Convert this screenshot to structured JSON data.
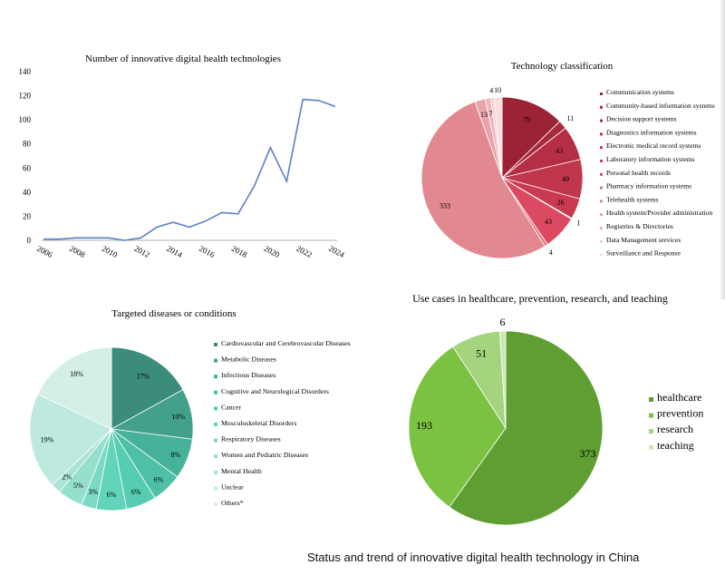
{
  "caption": "Status and trend of innovative digital health technology in China",
  "chart_data": [
    {
      "type": "line",
      "title": "Number of innovative digital health technologies",
      "x": [
        2006,
        2007,
        2008,
        2009,
        2010,
        2011,
        2012,
        2013,
        2014,
        2015,
        2016,
        2017,
        2018,
        2019,
        2020,
        2021,
        2022,
        2023,
        2024
      ],
      "values": [
        1,
        1,
        2,
        2,
        2,
        0,
        2,
        11,
        15,
        11,
        16,
        23,
        22,
        45,
        77,
        49,
        117,
        116,
        111
      ],
      "xticks": [
        "2006",
        "2008",
        "2010",
        "2012",
        "2014",
        "2016",
        "2018",
        "2020",
        "2022",
        "2024"
      ],
      "yticks": [
        0,
        20,
        40,
        60,
        80,
        100,
        120,
        140
      ],
      "ylim": [
        0,
        140
      ],
      "color": "#5b7fc4"
    },
    {
      "type": "pie",
      "title": "Technology classification",
      "labels": [
        "Communication systems",
        "Community-based information systems",
        "Decision support systems",
        "Diagnostics information systems",
        "Electronic medical record systems",
        "Laboratory information systems",
        "Personal health records",
        "Pharmacy information systems",
        "Telehealth systems",
        "Health system/Provider administration",
        "Registries & Directories",
        "Data Management srevices",
        "Surveillance and Response"
      ],
      "values": [
        79,
        11,
        43,
        49,
        26,
        1,
        43,
        4,
        333,
        13,
        7,
        4,
        10
      ],
      "value_labels": [
        "79",
        "11",
        "43",
        "49",
        "26",
        "1",
        "43",
        "4",
        "333",
        "13",
        "7",
        "4",
        "10"
      ],
      "colors": [
        "#9b2335",
        "#a82a3d",
        "#b52f44",
        "#c0364a",
        "#c93a50",
        "#d03d55",
        "#dc4a62",
        "#e17583",
        "#e28890",
        "#e9a3aa",
        "#eeb5bb",
        "#f3cccf",
        "#f7dde0"
      ]
    },
    {
      "type": "pie",
      "title": "Targeted diseases or conditions",
      "labels": [
        "Cardiovascular and Cerebrovascular Diseases",
        "Metabolic Diseases",
        "Infectious Diseases",
        "Cognitive and Neurological Disorders",
        "Cancer",
        "Musculoskeletal Disorders",
        "Respiratory Diseases",
        "Women and Pediatric Diseases",
        "Mental Health",
        "Unclear",
        "Others*"
      ],
      "values": [
        17,
        10,
        8,
        6,
        6,
        6,
        3,
        5,
        2,
        19,
        18
      ],
      "value_labels": [
        "17%",
        "10%",
        "8%",
        "6%",
        "6%",
        "6%",
        "3%",
        "5%",
        "2%",
        "19%",
        "18%"
      ],
      "colors": [
        "#3c8c7a",
        "#42a08b",
        "#47b29a",
        "#4ec0a6",
        "#56ccb1",
        "#62d4b9",
        "#7cdac4",
        "#95dfcd",
        "#a9e4d6",
        "#bde9de",
        "#d3efe8"
      ]
    },
    {
      "type": "pie",
      "title": "Use cases in healthcare, prevention, research, and teaching",
      "labels": [
        "healthcare",
        "prevention",
        "research",
        "teaching"
      ],
      "values": [
        373,
        193,
        51,
        6
      ],
      "value_labels": [
        "373",
        "193",
        "51",
        "6"
      ],
      "colors": [
        "#5e9e32",
        "#7cc242",
        "#a4d57e",
        "#cbe8b4"
      ]
    }
  ]
}
